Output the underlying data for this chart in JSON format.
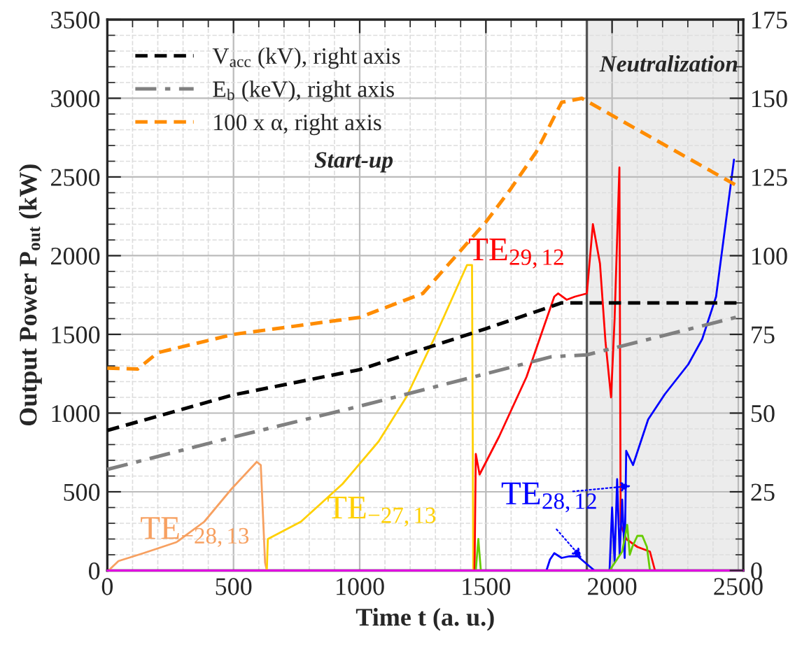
{
  "chart_data": {
    "type": "line",
    "xlabel": "Time t (a. u.)",
    "ylabel": "Output Power P$_{out}$ (kW)",
    "xlim": [
      0,
      2520
    ],
    "xticks": [
      0,
      500,
      1000,
      1500,
      2000,
      2500
    ],
    "ylim": [
      0,
      3500
    ],
    "yticks": [
      0,
      500,
      1000,
      1500,
      2000,
      2500,
      3000,
      3500
    ],
    "y2lim": [
      0,
      175
    ],
    "y2ticks": [
      0,
      25,
      50,
      75,
      100,
      125,
      150,
      175
    ],
    "grid": true,
    "legend": "top left",
    "marker": "none",
    "annotations": [
      "Start-up"
    ],
    "bands": [
      {
        "axis": "x",
        "from": 1900,
        "to": 2520,
        "label": "Neutralization",
        "color": "#ececec"
      }
    ],
    "ref_lines": [
      {
        "axis": "x",
        "value": 1900,
        "color": "#555555"
      }
    ],
    "series": [
      {
        "name": "V$_{acc}$ (kV), right axis",
        "color": "#000000",
        "axis": "y2",
        "line_style": "dashed",
        "x": [
          0,
          500,
          1000,
          1500,
          1800,
          2520
        ],
        "values": [
          44.5,
          55.8,
          63.8,
          76.8,
          85,
          85
        ]
      },
      {
        "name": "E$_{b}$ (keV), right axis",
        "color": "#808080",
        "axis": "y2",
        "line_style": "dashdot",
        "x": [
          0,
          500,
          1000,
          1500,
          1760,
          1900,
          2520
        ],
        "values": [
          32.1,
          42.4,
          52.2,
          62.5,
          67.9,
          68.5,
          81
        ]
      },
      {
        "name": "100 x α, right axis",
        "color": "#ff8c00",
        "axis": "y2",
        "line_style": "dashed",
        "x": [
          0,
          120,
          200,
          500,
          1000,
          1250,
          1500,
          1600,
          1700,
          1800,
          1880,
          2500
        ],
        "values": [
          64.3,
          64,
          69.2,
          75,
          80.4,
          88,
          110.7,
          121.4,
          133,
          148.7,
          150,
          122
        ]
      },
      {
        "name": "TE$_{−28,13}$",
        "color": "#f7a060",
        "line_style": "solid",
        "x": [
          5,
          44,
          143,
          274,
          384,
          493,
          592,
          608,
          625,
          632
        ],
        "values": [
          0,
          60,
          110,
          180,
          310,
          520,
          690,
          670,
          50,
          0
        ]
      },
      {
        "name": "TE$_{−27,13}$",
        "color": "#ffd000",
        "line_style": "solid",
        "x": [
          632,
          636,
          767,
          932,
          1075,
          1184,
          1294,
          1425,
          1445,
          1450
        ],
        "values": [
          0,
          200,
          310,
          550,
          820,
          1100,
          1470,
          1940,
          1940,
          0
        ]
      },
      {
        "name": "TE$_{29,12}$",
        "color": "#ff0000",
        "line_style": "solid",
        "x": [
          1455,
          1460,
          1475,
          1552,
          1661,
          1732,
          1771,
          1786,
          1820,
          1853,
          1900,
          1924,
          1952,
          1974,
          1996,
          2010,
          2029,
          2034,
          2056,
          2100,
          2150,
          2170
        ],
        "values": [
          0,
          740,
          610,
          850,
          1230,
          1560,
          1740,
          1760,
          1720,
          1740,
          1760,
          2200,
          1950,
          1450,
          1100,
          1600,
          2560,
          290,
          200,
          150,
          120,
          0
        ]
      },
      {
        "name": "TE$_{28,12}$",
        "color": "#0000ff",
        "line_style": "solid",
        "x": [
          1740,
          1754,
          1771,
          1800,
          1830,
          1864,
          1908,
          1930,
          1990,
          2000,
          2010,
          2020,
          2030,
          2040,
          2050,
          2056,
          2083,
          2143,
          2209,
          2302,
          2357,
          2412,
          2483
        ],
        "values": [
          0,
          70,
          110,
          80,
          90,
          90,
          30,
          0,
          0,
          400,
          50,
          580,
          100,
          450,
          80,
          760,
          670,
          960,
          1120,
          1310,
          1470,
          1740,
          2610
        ]
      },
      {
        "color": "#66cc00",
        "line_style": "solid",
        "x": [
          1460,
          1470,
          1480,
          1990,
          2040,
          2060,
          2070,
          2080,
          2100,
          2120,
          2138,
          2150
        ],
        "values": [
          0,
          200,
          0,
          0,
          120,
          290,
          100,
          150,
          220,
          220,
          150,
          0
        ]
      },
      {
        "color": "#e000e0",
        "line_style": "solid",
        "x": [
          0,
          2520
        ],
        "values": [
          0,
          0
        ]
      }
    ]
  }
}
